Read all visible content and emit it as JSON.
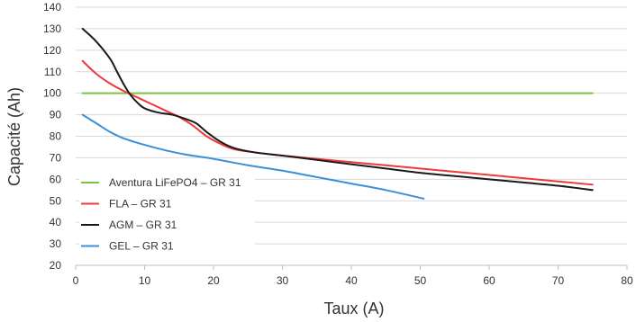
{
  "chart_data": {
    "type": "line",
    "title": "",
    "xlabel": "Taux (A)",
    "ylabel": "Capacité (Ah)",
    "xlim": [
      0,
      80
    ],
    "ylim": [
      20,
      140
    ],
    "xticks": [
      0,
      10,
      20,
      30,
      40,
      50,
      60,
      70,
      80
    ],
    "yticks": [
      20,
      30,
      40,
      50,
      60,
      70,
      80,
      90,
      100,
      110,
      120,
      130,
      140
    ],
    "grid": "horizontal",
    "legend_position": "bottom-left",
    "series": [
      {
        "name": "Aventura LiFePO4 – GR 31",
        "color": "#7cc242",
        "points": [
          [
            1,
            100
          ],
          [
            75,
            100
          ]
        ]
      },
      {
        "name": "FLA – GR 31",
        "color": "#ee3a3a",
        "points": [
          [
            1,
            115
          ],
          [
            3,
            109
          ],
          [
            5,
            104.5
          ],
          [
            7,
            101
          ],
          [
            9,
            98
          ],
          [
            11,
            95
          ],
          [
            13,
            92
          ],
          [
            15,
            89
          ],
          [
            17,
            85
          ],
          [
            19,
            80
          ],
          [
            21,
            76.5
          ],
          [
            23,
            74
          ],
          [
            26,
            72.5
          ],
          [
            30,
            71
          ],
          [
            35,
            69.5
          ],
          [
            40,
            68
          ],
          [
            45,
            66.5
          ],
          [
            50,
            65
          ],
          [
            55,
            63.5
          ],
          [
            60,
            62
          ],
          [
            65,
            60.5
          ],
          [
            70,
            59
          ],
          [
            75,
            57.5
          ]
        ]
      },
      {
        "name": "AGM – GR 31",
        "color": "#1a1a1a",
        "points": [
          [
            1,
            130
          ],
          [
            3,
            124
          ],
          [
            5,
            116
          ],
          [
            6,
            110
          ],
          [
            7,
            104
          ],
          [
            8,
            99
          ],
          [
            9,
            95.5
          ],
          [
            10,
            93
          ],
          [
            12,
            91
          ],
          [
            14,
            90
          ],
          [
            16,
            88
          ],
          [
            17.5,
            86
          ],
          [
            19,
            82
          ],
          [
            21,
            77.5
          ],
          [
            23,
            74.5
          ],
          [
            26,
            72.5
          ],
          [
            30,
            71
          ],
          [
            35,
            69
          ],
          [
            40,
            67
          ],
          [
            45,
            65
          ],
          [
            50,
            63
          ],
          [
            55,
            61.5
          ],
          [
            60,
            60
          ],
          [
            65,
            58.5
          ],
          [
            70,
            57
          ],
          [
            75,
            55
          ]
        ]
      },
      {
        "name": "GEL – GR 31",
        "color": "#3b8fd6",
        "points": [
          [
            1,
            90
          ],
          [
            3,
            86
          ],
          [
            5,
            82
          ],
          [
            7,
            79
          ],
          [
            10,
            76
          ],
          [
            13,
            73.5
          ],
          [
            16,
            71.5
          ],
          [
            20,
            69.5
          ],
          [
            25,
            66.5
          ],
          [
            30,
            64
          ],
          [
            35,
            61
          ],
          [
            40,
            58
          ],
          [
            45,
            55
          ],
          [
            50.5,
            51
          ]
        ]
      }
    ]
  }
}
